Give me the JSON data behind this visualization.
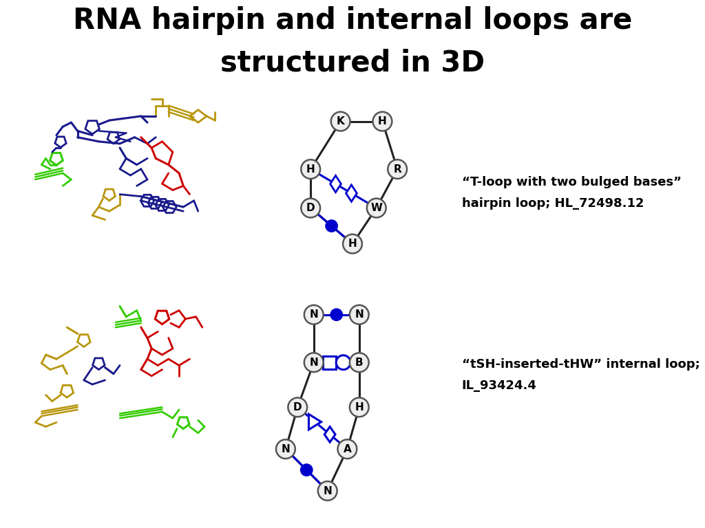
{
  "title": "RNA hairpin and internal loops are\nstructured in 3D",
  "title_bg": "#f4a0a0",
  "title_fontsize": 30,
  "bg_color": "#ffffff",
  "hairpin_label1": "“T-loop with two bulged bases”",
  "hairpin_label2": "hairpin loop; HL_72498.12",
  "internal_label1": "“tSH-inserted-tHW” internal loop;",
  "internal_label2": "IL_93424.4",
  "colors": {
    "navy": "#1a1a8c",
    "red": "#cc0000",
    "yellow": "#b8960c",
    "green": "#33cc00",
    "blue_symbol": "#0000cc"
  }
}
